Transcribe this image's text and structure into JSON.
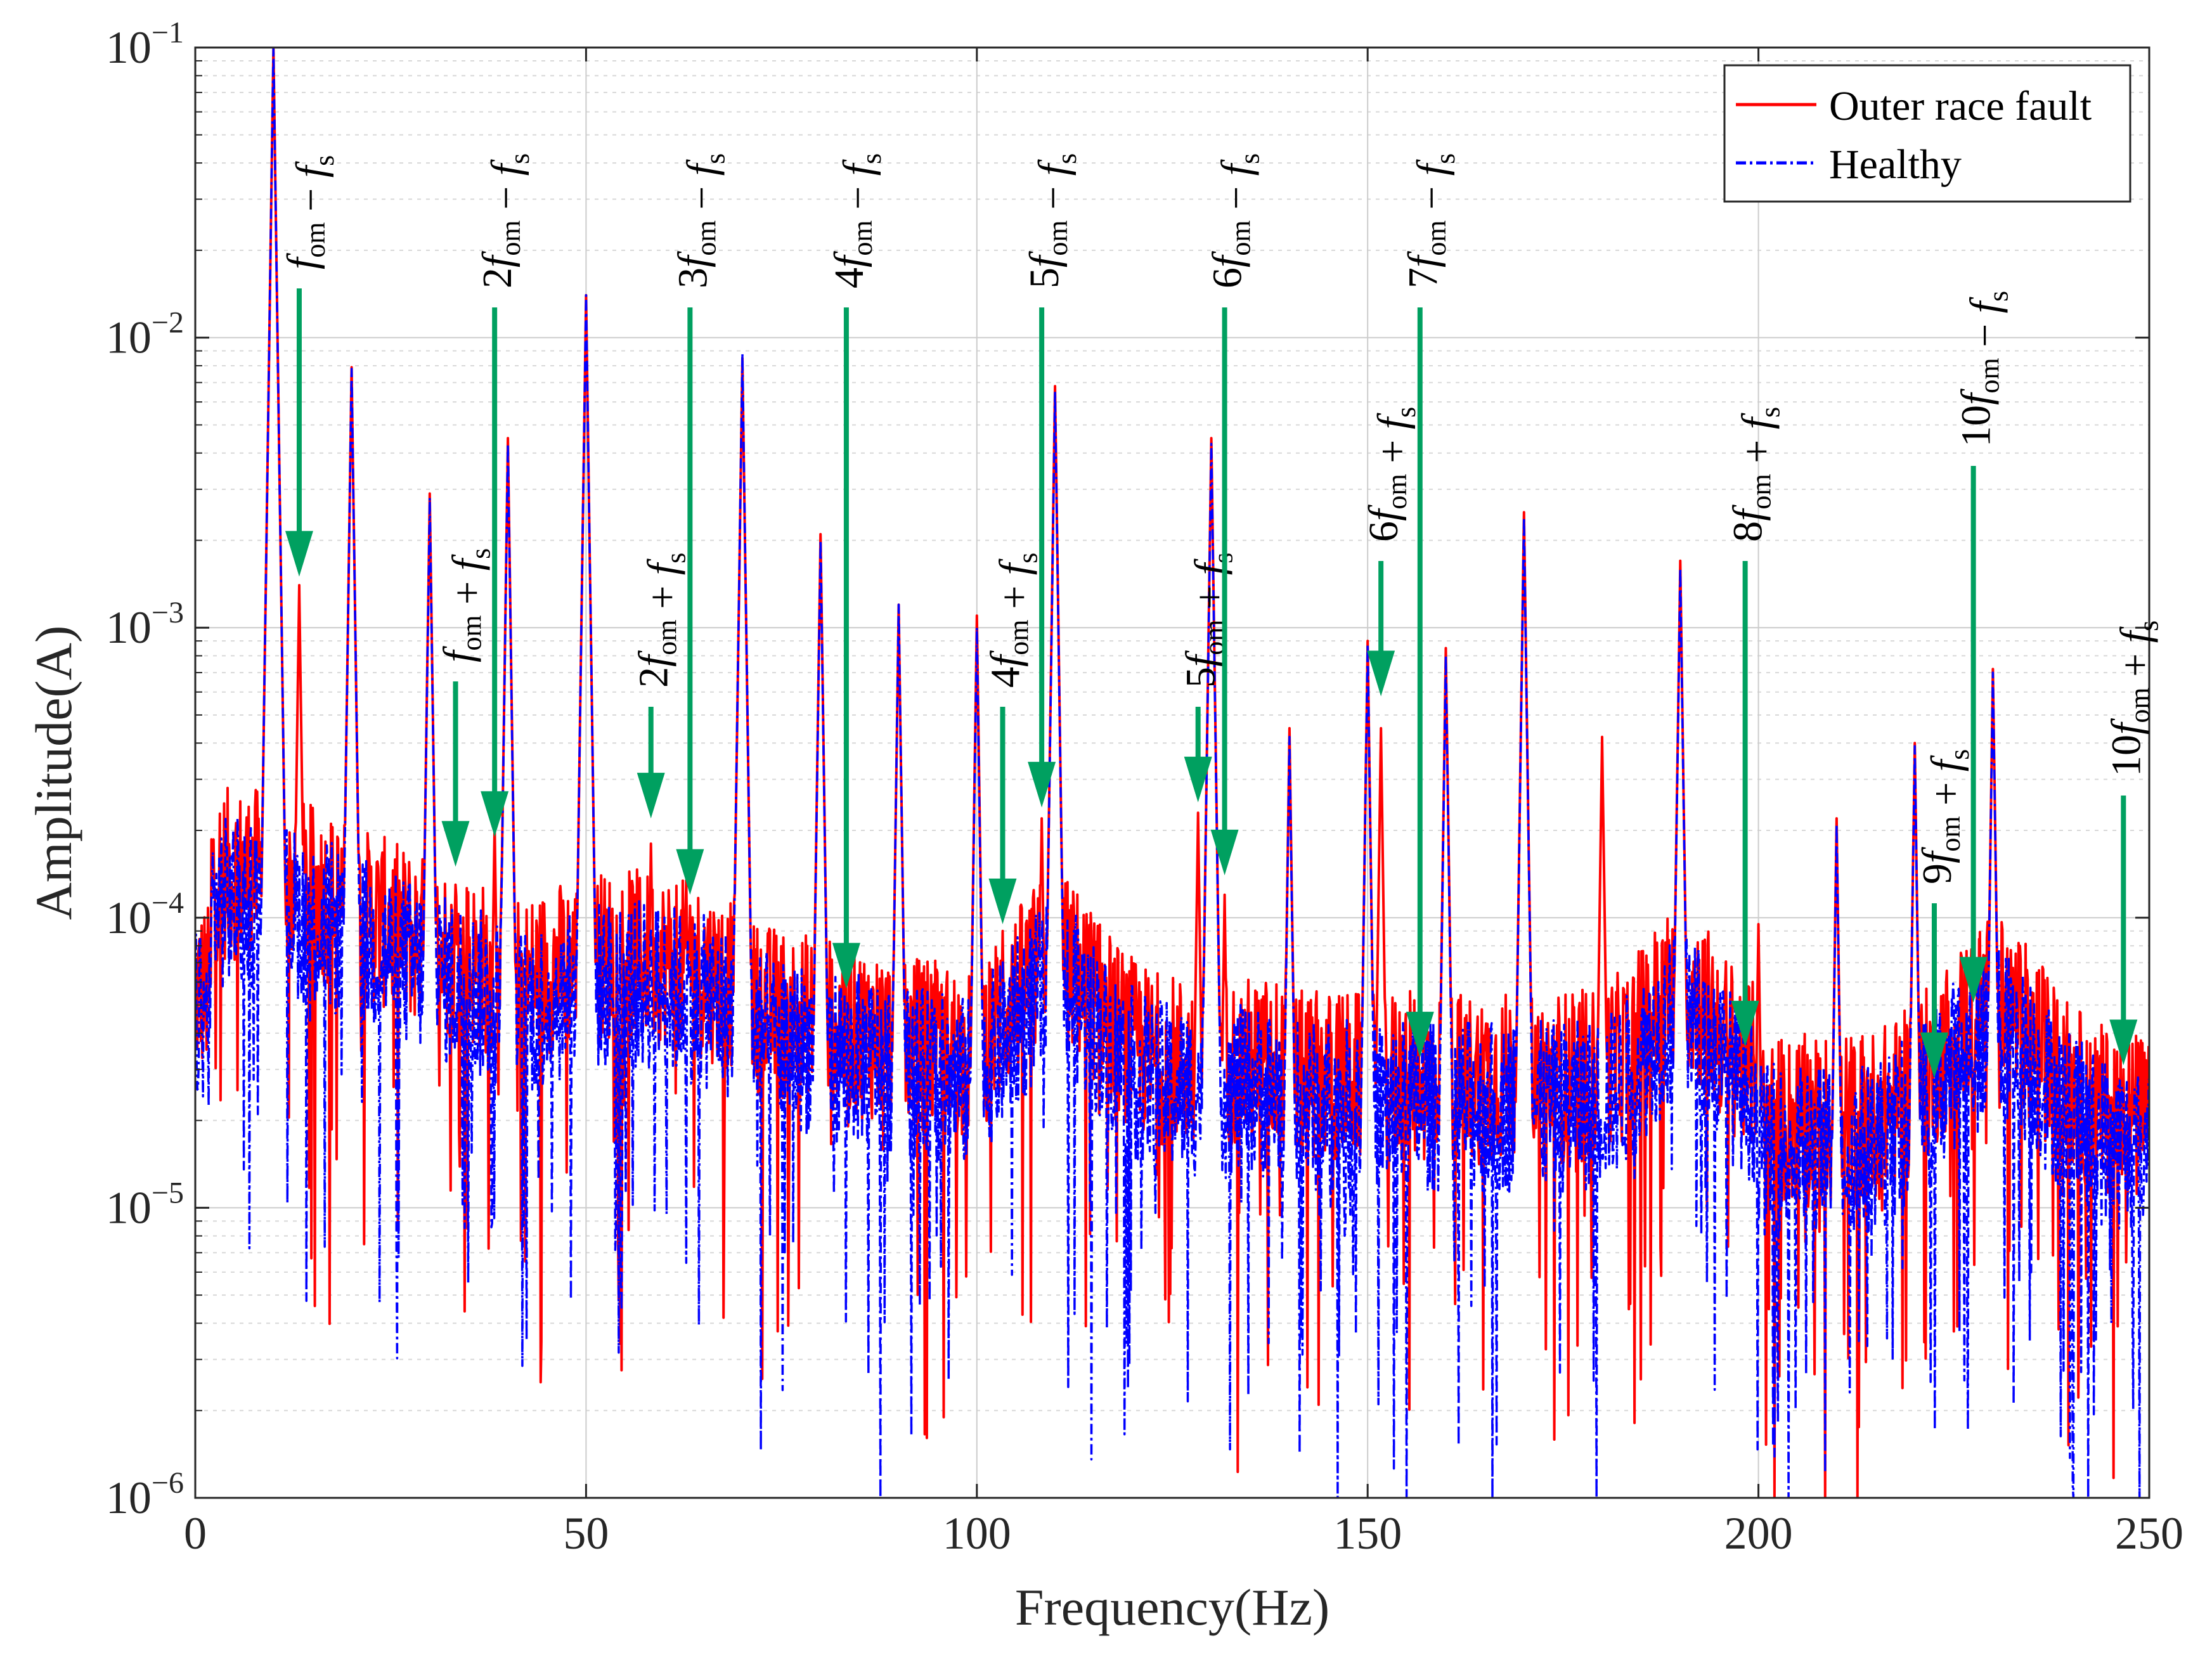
{
  "chart_data": {
    "type": "line",
    "yscale": "log",
    "xlabel": "Frequency(Hz)",
    "ylabel": "Amplitude(A)",
    "xlim": [
      0,
      250
    ],
    "ylim": [
      1e-06,
      0.1
    ],
    "xticks": [
      0,
      50,
      100,
      150,
      200,
      250
    ],
    "xtick_labels": [
      "0",
      "50",
      "100",
      "150",
      "200",
      "250"
    ],
    "ytick_exponents": [
      -6,
      -5,
      -4,
      -3,
      -2,
      -1
    ],
    "ytick_base": "10",
    "grid": true,
    "legend_position": "top-right",
    "series": [
      {
        "name": "Outer race fault",
        "color": "#ff0000",
        "style": "solid",
        "peaks": [
          {
            "x": 10,
            "y": 0.1
          },
          {
            "x": 13.3,
            "y": 0.0014
          },
          {
            "x": 20,
            "y": 0.0079
          },
          {
            "x": 30,
            "y": 0.0029
          },
          {
            "x": 33.3,
            "y": 0.00013
          },
          {
            "x": 38.3,
            "y": 0.00021
          },
          {
            "x": 40,
            "y": 0.0045
          },
          {
            "x": 50,
            "y": 0.014
          },
          {
            "x": 58.3,
            "y": 0.00018
          },
          {
            "x": 63.3,
            "y": 0.00011
          },
          {
            "x": 70,
            "y": 0.0085
          },
          {
            "x": 80,
            "y": 0.0021
          },
          {
            "x": 83.3,
            "y": 5e-05
          },
          {
            "x": 90,
            "y": 0.0012
          },
          {
            "x": 100,
            "y": 0.0011
          },
          {
            "x": 103.3,
            "y": 9e-05
          },
          {
            "x": 108.3,
            "y": 0.00022
          },
          {
            "x": 110,
            "y": 0.0068
          },
          {
            "x": 128.3,
            "y": 0.00023
          },
          {
            "x": 130,
            "y": 0.0045
          },
          {
            "x": 131.7,
            "y": 0.00012
          },
          {
            "x": 140,
            "y": 0.00045
          },
          {
            "x": 150,
            "y": 0.0009
          },
          {
            "x": 151.7,
            "y": 0.00045
          },
          {
            "x": 156.7,
            "y": 2.8e-05
          },
          {
            "x": 160,
            "y": 0.00085
          },
          {
            "x": 170,
            "y": 0.0025
          },
          {
            "x": 180,
            "y": 0.00042
          },
          {
            "x": 190,
            "y": 0.0017
          },
          {
            "x": 198.3,
            "y": 4.5e-05
          },
          {
            "x": 200,
            "y": 9.5e-05
          },
          {
            "x": 210,
            "y": 0.00022
          },
          {
            "x": 220,
            "y": 0.0004
          },
          {
            "x": 223.3,
            "y": 3.2e-05
          },
          {
            "x": 228.3,
            "y": 6.2e-05
          },
          {
            "x": 230,
            "y": 0.00072
          },
          {
            "x": 246.7,
            "y": 3e-05
          }
        ]
      },
      {
        "name": "Healthy",
        "color": "#0000ff",
        "style": "dash-dot",
        "peaks": [
          {
            "x": 10,
            "y": 0.1
          },
          {
            "x": 20,
            "y": 0.0078
          },
          {
            "x": 30,
            "y": 0.0028
          },
          {
            "x": 40,
            "y": 0.0043
          },
          {
            "x": 50,
            "y": 0.014
          },
          {
            "x": 70,
            "y": 0.0088
          },
          {
            "x": 80,
            "y": 0.002
          },
          {
            "x": 90,
            "y": 0.0012
          },
          {
            "x": 100,
            "y": 0.001
          },
          {
            "x": 110,
            "y": 0.0065
          },
          {
            "x": 130,
            "y": 0.0043
          },
          {
            "x": 140,
            "y": 0.00042
          },
          {
            "x": 150,
            "y": 0.00088
          },
          {
            "x": 160,
            "y": 0.0008
          },
          {
            "x": 170,
            "y": 0.0024
          },
          {
            "x": 190,
            "y": 0.0016
          },
          {
            "x": 210,
            "y": 0.00021
          },
          {
            "x": 220,
            "y": 0.00039
          },
          {
            "x": 230,
            "y": 0.0007
          }
        ]
      }
    ],
    "annotations": [
      {
        "label": [
          "",
          "f",
          "om",
          " − ",
          "f",
          "s"
        ],
        "x": 13.3,
        "y_arrow": 0.0015
      },
      {
        "label": [
          "",
          "f",
          "om",
          " + ",
          "f",
          "s"
        ],
        "x": 33.3,
        "y_arrow": 0.00015
      },
      {
        "label": [
          "2",
          "f",
          "om",
          " − ",
          "f",
          "s"
        ],
        "x": 38.3,
        "y_arrow": 0.00019
      },
      {
        "label": [
          "2",
          "f",
          "om",
          " + ",
          "f",
          "s"
        ],
        "x": 58.3,
        "y_arrow": 0.00022
      },
      {
        "label": [
          "3",
          "f",
          "om",
          " − ",
          "f",
          "s"
        ],
        "x": 63.3,
        "y_arrow": 0.00012
      },
      {
        "label": [
          "4",
          "f",
          "om",
          " − ",
          "f",
          "s"
        ],
        "x": 83.3,
        "y_arrow": 5.7e-05
      },
      {
        "label": [
          "4",
          "f",
          "om",
          " + ",
          "f",
          "s"
        ],
        "x": 103.3,
        "y_arrow": 9.5e-05
      },
      {
        "label": [
          "5",
          "f",
          "om",
          " − ",
          "f",
          "s"
        ],
        "x": 108.3,
        "y_arrow": 0.00024
      },
      {
        "label": [
          "5",
          "f",
          "om",
          " + ",
          "f",
          "s"
        ],
        "x": 128.3,
        "y_arrow": 0.00025
      },
      {
        "label": [
          "6",
          "f",
          "om",
          " − ",
          "f",
          "s"
        ],
        "x": 131.7,
        "y_arrow": 0.00014
      },
      {
        "label": [
          "6",
          "f",
          "om",
          " + ",
          "f",
          "s"
        ],
        "x": 151.7,
        "y_arrow": 0.00058
      },
      {
        "label": [
          "7",
          "f",
          "om",
          " − ",
          "f",
          "s"
        ],
        "x": 156.7,
        "y_arrow": 3.3e-05
      },
      {
        "label": [
          "8",
          "f",
          "om",
          " + ",
          "f",
          "s"
        ],
        "x": 198.3,
        "y_arrow": 3.6e-05
      },
      {
        "label": [
          "9",
          "f",
          "om",
          " + ",
          "f",
          "s"
        ],
        "x": 222.5,
        "y_arrow": 2.8e-05
      },
      {
        "label": [
          "10",
          "f",
          "om",
          " − ",
          "f",
          "s"
        ],
        "x": 227.5,
        "y_arrow": 5.1e-05
      },
      {
        "label": [
          "10",
          "f",
          "om",
          " + ",
          "f",
          "s"
        ],
        "x": 246.7,
        "y_arrow": 3.1e-05
      }
    ],
    "annotation_color": "#00a060"
  }
}
